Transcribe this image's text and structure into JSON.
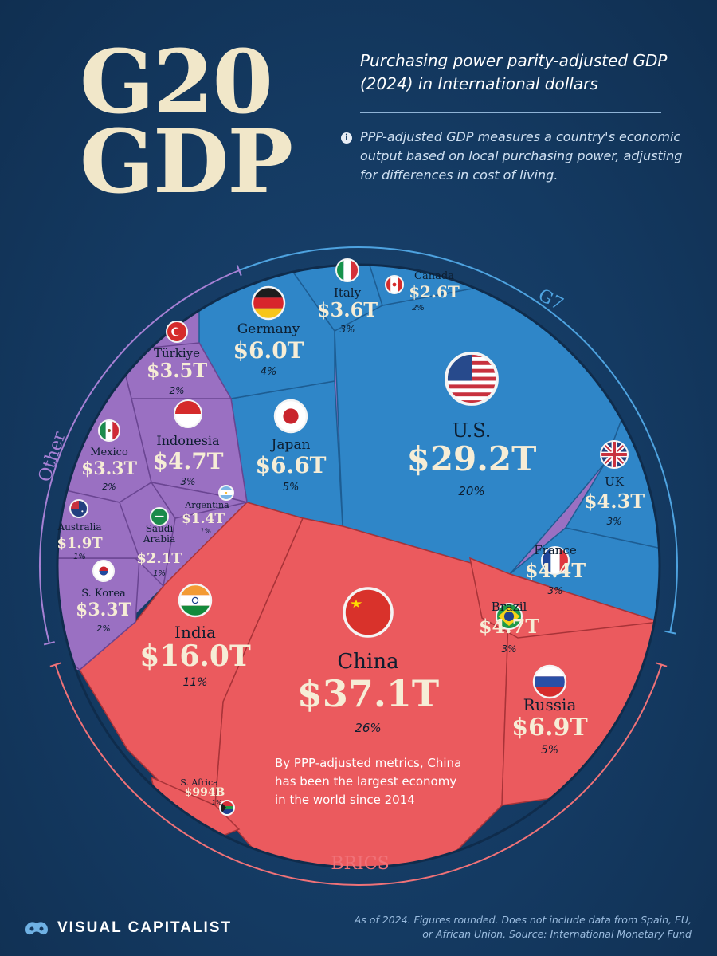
{
  "header": {
    "title_line1": "G20",
    "title_line2": "GDP",
    "subtitle": "Purchasing power parity-adjusted GDP (2024) in International dollars",
    "info_text": "PPP-adjusted GDP measures a country's economic output based on local purchasing power, adjusting for differences in cost of living."
  },
  "groups": {
    "g7": "G7",
    "other": "Other",
    "brics": "BRICS"
  },
  "colors": {
    "g7": "#2f86c8",
    "g7_stroke": "#1d5d93",
    "other": "#9a70c2",
    "other_stroke": "#6a4592",
    "brics": "#eb5a5e",
    "brics_stroke": "#a83338",
    "background": "#13365c",
    "title": "#f1e7c9"
  },
  "chart_data": {
    "type": "voronoi-treemap",
    "unit": "International dollars (PPP)",
    "year": 2024,
    "countries": [
      {
        "name": "U.S.",
        "value": "$29.2T",
        "gdp_trillion": 29.2,
        "share": "20%",
        "group": "G7",
        "flag": "us-flag-icon"
      },
      {
        "name": "Japan",
        "value": "$6.6T",
        "gdp_trillion": 6.6,
        "share": "5%",
        "group": "G7",
        "flag": "japan-flag-icon"
      },
      {
        "name": "Germany",
        "value": "$6.0T",
        "gdp_trillion": 6.0,
        "share": "4%",
        "group": "G7",
        "flag": "germany-flag-icon"
      },
      {
        "name": "France",
        "value": "$4.4T",
        "gdp_trillion": 4.4,
        "share": "3%",
        "group": "G7",
        "flag": "france-flag-icon"
      },
      {
        "name": "UK",
        "value": "$4.3T",
        "gdp_trillion": 4.3,
        "share": "3%",
        "group": "G7",
        "flag": "uk-flag-icon"
      },
      {
        "name": "Italy",
        "value": "$3.6T",
        "gdp_trillion": 3.6,
        "share": "3%",
        "group": "G7",
        "flag": "italy-flag-icon"
      },
      {
        "name": "Canada",
        "value": "$2.6T",
        "gdp_trillion": 2.6,
        "share": "2%",
        "group": "G7",
        "flag": "canada-flag-icon"
      },
      {
        "name": "China",
        "value": "$37.1T",
        "gdp_trillion": 37.1,
        "share": "26%",
        "group": "BRICS",
        "flag": "china-flag-icon"
      },
      {
        "name": "India",
        "value": "$16.0T",
        "gdp_trillion": 16.0,
        "share": "11%",
        "group": "BRICS",
        "flag": "india-flag-icon"
      },
      {
        "name": "Russia",
        "value": "$6.9T",
        "gdp_trillion": 6.9,
        "share": "5%",
        "group": "BRICS",
        "flag": "russia-flag-icon"
      },
      {
        "name": "Brazil",
        "value": "$4.7T",
        "gdp_trillion": 4.7,
        "share": "3%",
        "group": "BRICS",
        "flag": "brazil-flag-icon"
      },
      {
        "name": "S. Africa",
        "value": "$994B",
        "gdp_trillion": 0.994,
        "share": "1%",
        "group": "BRICS",
        "flag": "south-africa-flag-icon"
      },
      {
        "name": "Indonesia",
        "value": "$4.7T",
        "gdp_trillion": 4.7,
        "share": "3%",
        "group": "Other",
        "flag": "indonesia-flag-icon"
      },
      {
        "name": "Türkiye",
        "value": "$3.5T",
        "gdp_trillion": 3.5,
        "share": "2%",
        "group": "Other",
        "flag": "turkiye-flag-icon"
      },
      {
        "name": "Mexico",
        "value": "$3.3T",
        "gdp_trillion": 3.3,
        "share": "2%",
        "group": "Other",
        "flag": "mexico-flag-icon"
      },
      {
        "name": "S. Korea",
        "value": "$3.3T",
        "gdp_trillion": 3.3,
        "share": "2%",
        "group": "Other",
        "flag": "south-korea-flag-icon"
      },
      {
        "name": "Saudi Arabia",
        "value": "$2.1T",
        "gdp_trillion": 2.1,
        "share": "1%",
        "group": "Other",
        "flag": "saudi-arabia-flag-icon"
      },
      {
        "name": "Australia",
        "value": "$1.9T",
        "gdp_trillion": 1.9,
        "share": "1%",
        "group": "Other",
        "flag": "australia-flag-icon"
      },
      {
        "name": "Argentina",
        "value": "$1.4T",
        "gdp_trillion": 1.4,
        "share": "1%",
        "group": "Other",
        "flag": "argentina-flag-icon"
      }
    ],
    "annotation": "By PPP-adjusted metrics, China has been the largest economy in the world since 2014"
  },
  "footer": {
    "note": "As of 2024. Figures rounded. Does not include data from Spain, EU, or African Union. Source: International Monetary Fund",
    "brand": "VISUAL CAPITALIST"
  }
}
